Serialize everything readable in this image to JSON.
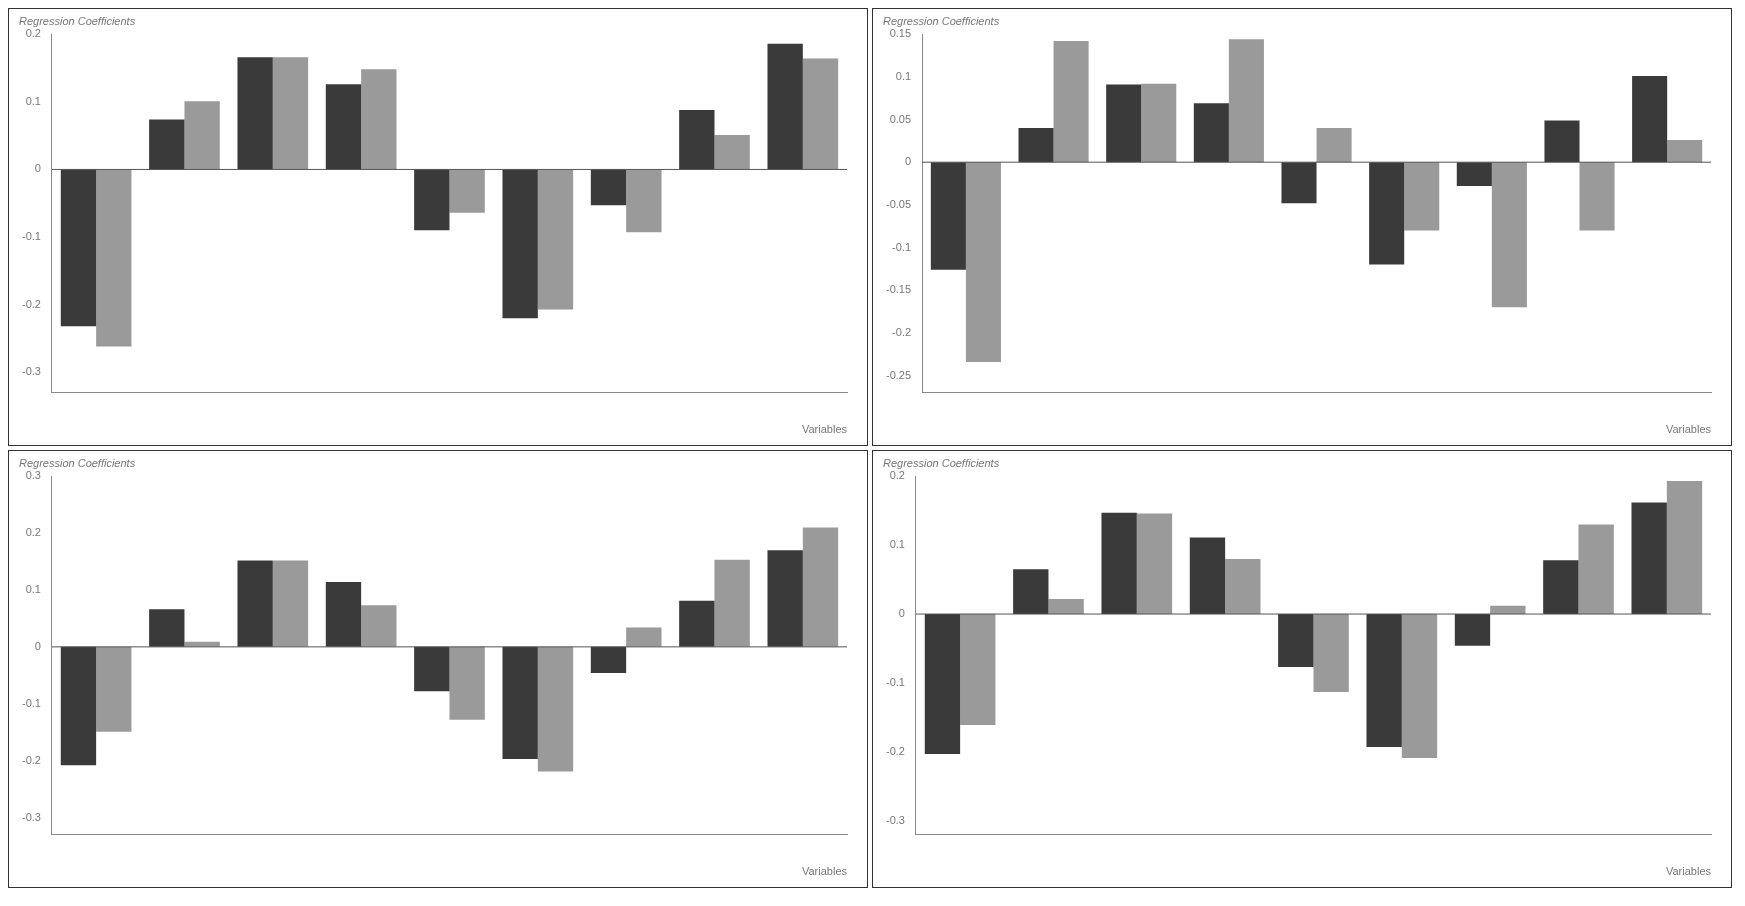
{
  "chart_data": [
    {
      "type": "bar",
      "title": "Regression Coefficients",
      "xlabel": "Variables",
      "categories": [
        null,
        null,
        null,
        null,
        null,
        null,
        null,
        null,
        null
      ],
      "series": [
        {
          "color": "#3a3a3a",
          "values": [
            -0.232,
            0.074,
            0.166,
            0.126,
            -0.09,
            -0.22,
            -0.053,
            0.088,
            0.186
          ]
        },
        {
          "color": "#9a9a9a",
          "values": [
            -0.262,
            0.101,
            0.166,
            0.148,
            -0.064,
            -0.207,
            -0.093,
            0.051,
            0.164
          ]
        }
      ],
      "ylim": [
        -0.33,
        0.2
      ],
      "yticks": [
        -0.3,
        -0.2,
        -0.1,
        0,
        0.1,
        0.2
      ],
      "ref_lines": [
        {
          "axis": "y",
          "value": 0
        }
      ]
    },
    {
      "type": "bar",
      "title": "Regression Coefficients",
      "xlabel": "Variables",
      "categories": [
        null,
        null,
        null,
        null,
        null,
        null,
        null,
        null,
        null
      ],
      "series": [
        {
          "color": "#3a3a3a",
          "values": [
            -0.126,
            0.04,
            0.091,
            0.069,
            -0.048,
            -0.12,
            -0.028,
            0.049,
            0.101
          ]
        },
        {
          "color": "#9a9a9a",
          "values": [
            -0.234,
            0.142,
            0.092,
            0.144,
            0.04,
            -0.08,
            -0.17,
            -0.08,
            0.026
          ]
        }
      ],
      "ylim": [
        -0.27,
        0.15
      ],
      "yticks": [
        -0.25,
        -0.2,
        -0.15,
        -0.1,
        -0.05,
        0,
        0.05,
        0.1,
        0.15
      ],
      "ref_lines": [
        {
          "axis": "y",
          "value": 0
        }
      ]
    },
    {
      "type": "bar",
      "title": "Regression Coefficients",
      "xlabel": "Variables",
      "categories": [
        null,
        null,
        null,
        null,
        null,
        null,
        null,
        null,
        null
      ],
      "series": [
        {
          "color": "#3a3a3a",
          "values": [
            -0.208,
            0.066,
            0.152,
            0.114,
            -0.078,
            -0.197,
            -0.046,
            0.081,
            0.17
          ]
        },
        {
          "color": "#9a9a9a",
          "values": [
            -0.149,
            0.009,
            0.152,
            0.073,
            -0.128,
            -0.219,
            0.034,
            0.153,
            0.21
          ]
        }
      ],
      "ylim": [
        -0.33,
        0.3
      ],
      "yticks": [
        -0.3,
        -0.2,
        -0.1,
        0,
        0.1,
        0.2,
        0.3
      ],
      "ref_lines": [
        {
          "axis": "y",
          "value": 0
        }
      ]
    },
    {
      "type": "bar",
      "title": "Regression Coefficients",
      "xlabel": "Variables",
      "categories": [
        null,
        null,
        null,
        null,
        null,
        null,
        null,
        null,
        null
      ],
      "series": [
        {
          "color": "#3a3a3a",
          "values": [
            -0.203,
            0.065,
            0.147,
            0.111,
            -0.077,
            -0.193,
            -0.046,
            0.078,
            0.162
          ]
        },
        {
          "color": "#9a9a9a",
          "values": [
            -0.161,
            0.022,
            0.146,
            0.08,
            -0.113,
            -0.209,
            0.012,
            0.13,
            0.193
          ]
        }
      ],
      "ylim": [
        -0.32,
        0.2
      ],
      "yticks": [
        -0.3,
        -0.2,
        -0.1,
        0,
        0.1,
        0.2
      ],
      "ref_lines": [
        {
          "axis": "y",
          "value": 0
        }
      ]
    }
  ]
}
